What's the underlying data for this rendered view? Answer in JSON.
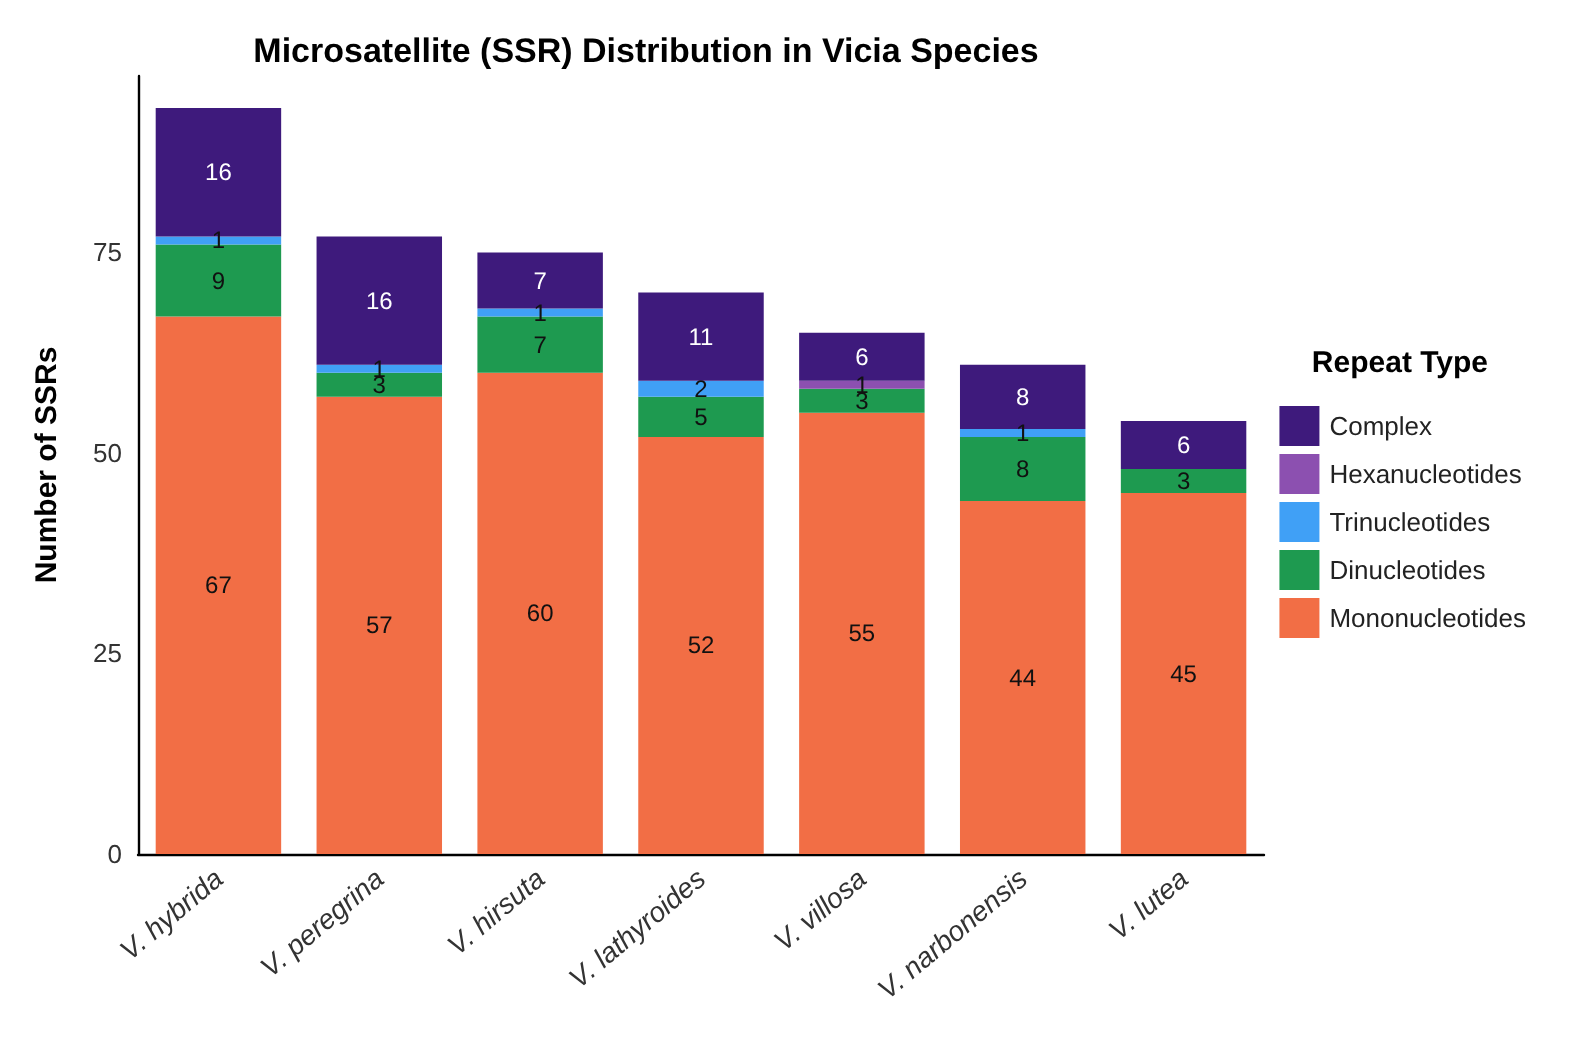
{
  "chart_data": {
    "type": "bar",
    "title": "Microsatellite (SSR) Distribution in Vicia Species",
    "ylabel": "Number of SSRs",
    "legend_title": "Repeat Type",
    "categories": [
      "V. hybrida",
      "V. peregrina",
      "V. hirsuta",
      "V. lathyroides",
      "V. villosa",
      "V. narbonensis",
      "V. lutea"
    ],
    "stacked": true,
    "data_labels": true,
    "legend": "right",
    "grid": false,
    "ylim": [
      0,
      97
    ],
    "yticks": [
      0,
      25,
      50,
      75
    ],
    "series": [
      {
        "name": "Mononucleotides",
        "color": "#f26e45",
        "values": [
          67,
          57,
          60,
          52,
          55,
          44,
          45
        ]
      },
      {
        "name": "Dinucleotides",
        "color": "#1e9a50",
        "values": [
          9,
          3,
          7,
          5,
          3,
          8,
          3
        ]
      },
      {
        "name": "Trinucleotides",
        "color": "#40a0f6",
        "values": [
          1,
          1,
          1,
          2,
          null,
          1,
          null
        ]
      },
      {
        "name": "Hexanucleotides",
        "color": "#8c50b0",
        "values": [
          null,
          null,
          null,
          null,
          1,
          null,
          null
        ]
      },
      {
        "name": "Complex",
        "color": "#3e1a7c",
        "values": [
          16,
          16,
          7,
          11,
          6,
          8,
          6
        ]
      }
    ]
  }
}
